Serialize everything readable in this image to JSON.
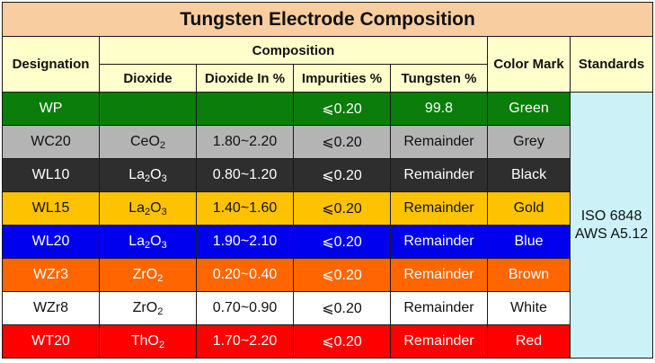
{
  "title": "Tungsten Electrode Composition",
  "headers": {
    "designation": "Designation",
    "composition": "Composition",
    "dioxide": "Dioxide",
    "dioxide_pct": "Dioxide In %",
    "impurities": "Impurities %",
    "tungsten": "Tungsten %",
    "color_mark": "Color Mark",
    "standards": "Standards"
  },
  "standards": [
    "ISO 6848",
    "AWS A5.12"
  ],
  "rows": [
    {
      "designation": "WP",
      "dioxide_base": "",
      "dioxide_sub1": "",
      "dioxide_mid": "",
      "dioxide_sub2": "",
      "dioxide_pct": "",
      "impurities": "⩽0.20",
      "tungsten": "99.8",
      "color": "Green",
      "bg": "#0a7d0a",
      "fg": "#ffffff"
    },
    {
      "designation": "WC20",
      "dioxide_base": "CeO",
      "dioxide_sub1": "",
      "dioxide_mid": "",
      "dioxide_sub2": "2",
      "dioxide_pct": "1.80~2.20",
      "impurities": "⩽0.20",
      "tungsten": "Remainder",
      "color": "Grey",
      "bg": "#b4b4b4",
      "fg": "#111111"
    },
    {
      "designation": "WL10",
      "dioxide_base": "La",
      "dioxide_sub1": "2",
      "dioxide_mid": "O",
      "dioxide_sub2": "3",
      "dioxide_pct": "0.80~1.20",
      "impurities": "⩽0.20",
      "tungsten": "Remainder",
      "color": "Black",
      "bg": "#2e2e2e",
      "fg": "#ffffff"
    },
    {
      "designation": "WL15",
      "dioxide_base": "La",
      "dioxide_sub1": "2",
      "dioxide_mid": "O",
      "dioxide_sub2": "3",
      "dioxide_pct": "1.40~1.60",
      "impurities": "⩽0.20",
      "tungsten": "Remainder",
      "color": "Gold",
      "bg": "#ffc200",
      "fg": "#111111"
    },
    {
      "designation": "WL20",
      "dioxide_base": "La",
      "dioxide_sub1": "2",
      "dioxide_mid": "O",
      "dioxide_sub2": "3",
      "dioxide_pct": "1.90~2.10",
      "impurities": "⩽0.20",
      "tungsten": "Remainder",
      "color": "Blue",
      "bg": "#0000ee",
      "fg": "#ffffff"
    },
    {
      "designation": "WZr3",
      "dioxide_base": "ZrO",
      "dioxide_sub1": "",
      "dioxide_mid": "",
      "dioxide_sub2": "2",
      "dioxide_pct": "0.20~0.40",
      "impurities": "⩽0.20",
      "tungsten": "Remainder",
      "color": "Brown",
      "bg": "#ff6600",
      "fg": "#ffffff"
    },
    {
      "designation": "WZr8",
      "dioxide_base": "ZrO",
      "dioxide_sub1": "",
      "dioxide_mid": "",
      "dioxide_sub2": "2",
      "dioxide_pct": "0.70~0.90",
      "impurities": "⩽0.20",
      "tungsten": "Remainder",
      "color": "White",
      "bg": "#ffffff",
      "fg": "#111111"
    },
    {
      "designation": "WT20",
      "dioxide_base": "ThO",
      "dioxide_sub1": "",
      "dioxide_mid": "",
      "dioxide_sub2": "2",
      "dioxide_pct": "1.70~2.20",
      "impurities": "⩽0.20",
      "tungsten": "Remainder",
      "color": "Red",
      "bg": "#ff0000",
      "fg": "#ffffff"
    }
  ]
}
